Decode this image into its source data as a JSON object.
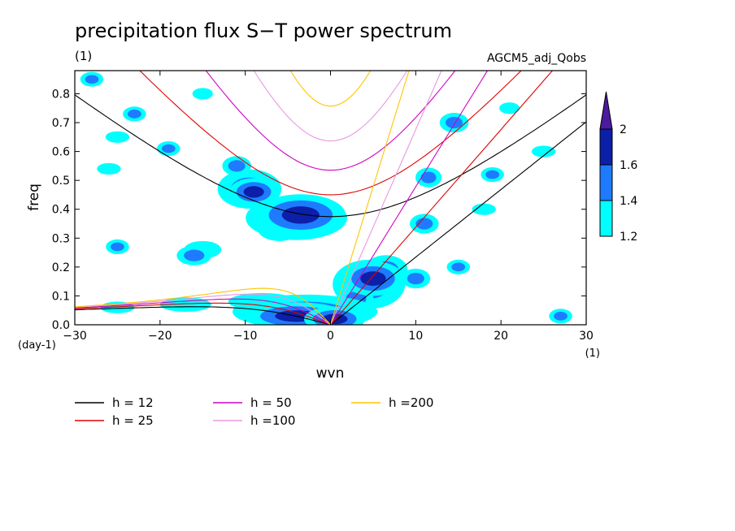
{
  "chart_data": {
    "type": "heatmap",
    "title": "precipitation flux S−T power spectrum",
    "subtitle_left": "(1)",
    "subtitle_right": "AGCM5_adj_Qobs",
    "xlabel": "wvn",
    "ylabel": "freq",
    "x_unit": "(1)",
    "y_unit": "(day-1)",
    "xlim": [
      -30,
      30
    ],
    "ylim": [
      0,
      0.88
    ],
    "xticks": [
      -30,
      -20,
      -10,
      0,
      10,
      20,
      30
    ],
    "yticks": [
      0,
      0.1,
      0.2,
      0.3,
      0.4,
      0.5,
      0.6,
      0.7,
      0.8
    ],
    "colorbar": {
      "levels": [
        1.2,
        1.4,
        1.6,
        2
      ],
      "labels": [
        "1.2",
        "1.4",
        "1.6",
        "2"
      ],
      "colors": [
        "#00ffff",
        "#1e7bff",
        "#0c1fa8",
        "#4a1b9e"
      ]
    },
    "dispersion_curves": [
      {
        "name": "h = 12",
        "h": 12,
        "color": "#000000"
      },
      {
        "name": "h = 25",
        "h": 25,
        "color": "#e00000"
      },
      {
        "name": "h = 50",
        "h": 50,
        "color": "#d000c0"
      },
      {
        "name": "h =100",
        "h": 100,
        "color": "#e898e0"
      },
      {
        "name": "h =200",
        "h": 200,
        "color": "#ffc400"
      }
    ],
    "blobs": [
      {
        "x": -3.5,
        "y": 0.38,
        "level": 3,
        "rx": 2.2,
        "ry": 0.03
      },
      {
        "x": -4,
        "y": 0.37,
        "level": 2,
        "rx": 3.5,
        "ry": 0.045
      },
      {
        "x": -9,
        "y": 0.46,
        "level": 3,
        "rx": 1.2,
        "ry": 0.02
      },
      {
        "x": -9.5,
        "y": 0.47,
        "level": 2,
        "rx": 2.2,
        "ry": 0.04
      },
      {
        "x": -11,
        "y": 0.55,
        "level": 2,
        "rx": 1.0,
        "ry": 0.02
      },
      {
        "x": -19,
        "y": 0.61,
        "level": 2,
        "rx": 0.8,
        "ry": 0.015
      },
      {
        "x": -23,
        "y": 0.73,
        "level": 2,
        "rx": 0.8,
        "ry": 0.015
      },
      {
        "x": -28,
        "y": 0.85,
        "level": 2,
        "rx": 0.8,
        "ry": 0.015
      },
      {
        "x": -15,
        "y": 0.8,
        "level": 1,
        "rx": 1.2,
        "ry": 0.02
      },
      {
        "x": -25,
        "y": 0.65,
        "level": 1,
        "rx": 1.4,
        "ry": 0.02
      },
      {
        "x": -26,
        "y": 0.54,
        "level": 1,
        "rx": 1.4,
        "ry": 0.02
      },
      {
        "x": -6,
        "y": 0.33,
        "level": 1,
        "rx": 2.5,
        "ry": 0.04
      },
      {
        "x": -16,
        "y": 0.24,
        "level": 2,
        "rx": 1.2,
        "ry": 0.02
      },
      {
        "x": -15,
        "y": 0.26,
        "level": 1,
        "rx": 2.2,
        "ry": 0.03
      },
      {
        "x": -25,
        "y": 0.27,
        "level": 2,
        "rx": 0.8,
        "ry": 0.015
      },
      {
        "x": 5,
        "y": 0.16,
        "level": 3,
        "rx": 1.5,
        "ry": 0.025
      },
      {
        "x": 4.5,
        "y": 0.14,
        "level": 2,
        "rx": 2.5,
        "ry": 0.05
      },
      {
        "x": 6.5,
        "y": 0.19,
        "level": 2,
        "rx": 1.5,
        "ry": 0.03
      },
      {
        "x": 3,
        "y": 0.09,
        "level": 2,
        "rx": 1.2,
        "ry": 0.025
      },
      {
        "x": 10,
        "y": 0.16,
        "level": 2,
        "rx": 1.0,
        "ry": 0.02
      },
      {
        "x": 11,
        "y": 0.35,
        "level": 2,
        "rx": 1.0,
        "ry": 0.02
      },
      {
        "x": 14.5,
        "y": 0.7,
        "level": 2,
        "rx": 1.0,
        "ry": 0.02
      },
      {
        "x": 15,
        "y": 0.2,
        "level": 2,
        "rx": 0.8,
        "ry": 0.015
      },
      {
        "x": 19,
        "y": 0.52,
        "level": 2,
        "rx": 0.8,
        "ry": 0.015
      },
      {
        "x": 11.5,
        "y": 0.51,
        "level": 2,
        "rx": 0.9,
        "ry": 0.02
      },
      {
        "x": -4,
        "y": 0.03,
        "level": 3,
        "rx": 2.5,
        "ry": 0.02
      },
      {
        "x": 0.5,
        "y": 0.02,
        "level": 3,
        "rx": 1.5,
        "ry": 0.018
      },
      {
        "x": -3,
        "y": 0.045,
        "level": 2,
        "rx": 5,
        "ry": 0.035
      },
      {
        "x": -8,
        "y": 0.08,
        "level": 1,
        "rx": 4,
        "ry": 0.03
      },
      {
        "x": -17,
        "y": 0.07,
        "level": 1,
        "rx": 3,
        "ry": 0.025
      },
      {
        "x": -25,
        "y": 0.06,
        "level": 1,
        "rx": 2,
        "ry": 0.02
      },
      {
        "x": 27,
        "y": 0.03,
        "level": 2,
        "rx": 0.8,
        "ry": 0.015
      },
      {
        "x": 21,
        "y": 0.75,
        "level": 1,
        "rx": 1.2,
        "ry": 0.02
      },
      {
        "x": 25,
        "y": 0.6,
        "level": 1,
        "rx": 1.4,
        "ry": 0.02
      },
      {
        "x": 18,
        "y": 0.4,
        "level": 1,
        "rx": 1.4,
        "ry": 0.02
      }
    ],
    "grid": false,
    "legend_position": "bottom-left"
  }
}
